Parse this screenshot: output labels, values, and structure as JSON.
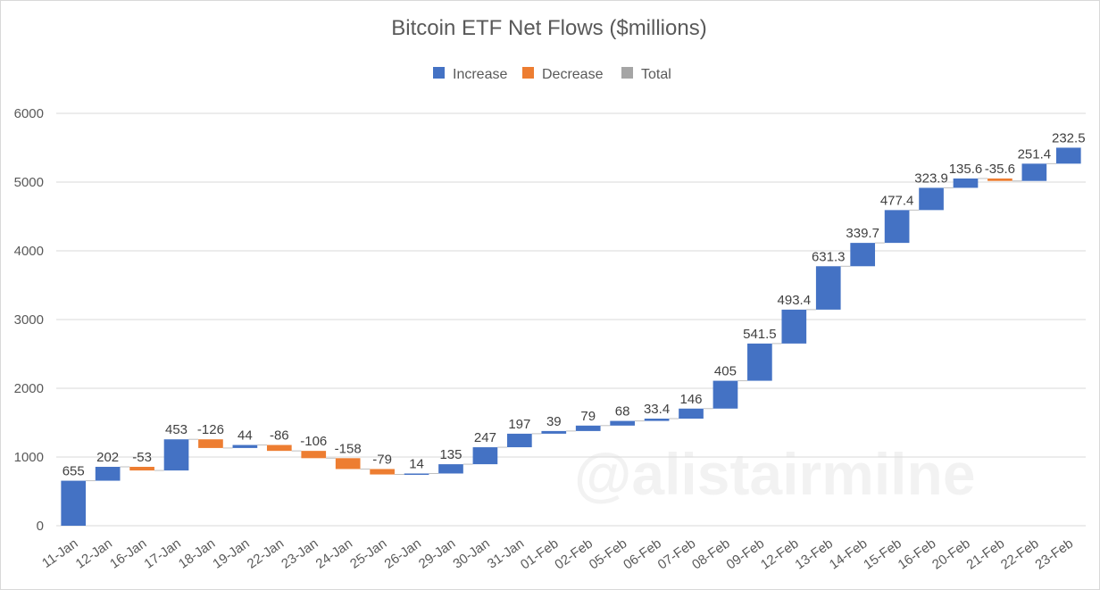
{
  "chart_data": {
    "type": "waterfall",
    "title": "Bitcoin ETF Net Flows ($millions)",
    "legend": {
      "placement": "top-center",
      "entries": [
        {
          "name": "Increase",
          "color": "#4472c4"
        },
        {
          "name": "Decrease",
          "color": "#ed7d31"
        },
        {
          "name": "Total",
          "color": "#a5a5a5"
        }
      ]
    },
    "categories": [
      "11-Jan",
      "12-Jan",
      "16-Jan",
      "17-Jan",
      "18-Jan",
      "19-Jan",
      "22-Jan",
      "23-Jan",
      "24-Jan",
      "25-Jan",
      "26-Jan",
      "29-Jan",
      "30-Jan",
      "31-Jan",
      "01-Feb",
      "02-Feb",
      "05-Feb",
      "06-Feb",
      "07-Feb",
      "08-Feb",
      "09-Feb",
      "12-Feb",
      "13-Feb",
      "14-Feb",
      "15-Feb",
      "16-Feb",
      "20-Feb",
      "21-Feb",
      "22-Feb",
      "23-Feb"
    ],
    "values": [
      655,
      202,
      -53,
      453,
      -126,
      44,
      -86,
      -106,
      -158,
      -79,
      14,
      135,
      247,
      197,
      39,
      79,
      68,
      33.4,
      146,
      405,
      541.5,
      493.4,
      631.3,
      339.7,
      477.4,
      323.9,
      135.6,
      -35.6,
      251.4,
      232.5
    ],
    "data_labels": [
      "655",
      "202",
      "-53",
      "453",
      "-126",
      "44",
      "-86",
      "-106",
      "-158",
      "-79",
      "14",
      "135",
      "247",
      "197",
      "39",
      "79",
      "68",
      "33.4",
      "146",
      "405",
      "541.5",
      "493.4",
      "631.3",
      "339.7",
      "477.4",
      "323.9",
      "135.6",
      "-35.6",
      "251.4",
      "232.5"
    ],
    "y_ticks": [
      "0",
      "1000",
      "2000",
      "3000",
      "4000",
      "5000",
      "6000"
    ],
    "ylim": [
      0,
      6000
    ],
    "grid": true,
    "colors": {
      "increase": "#4472c4",
      "decrease": "#ed7d31",
      "total": "#a5a5a5",
      "grid": "#d9d9d9",
      "connector": "#bfbfbf"
    }
  },
  "watermark": "@alistairmilne"
}
